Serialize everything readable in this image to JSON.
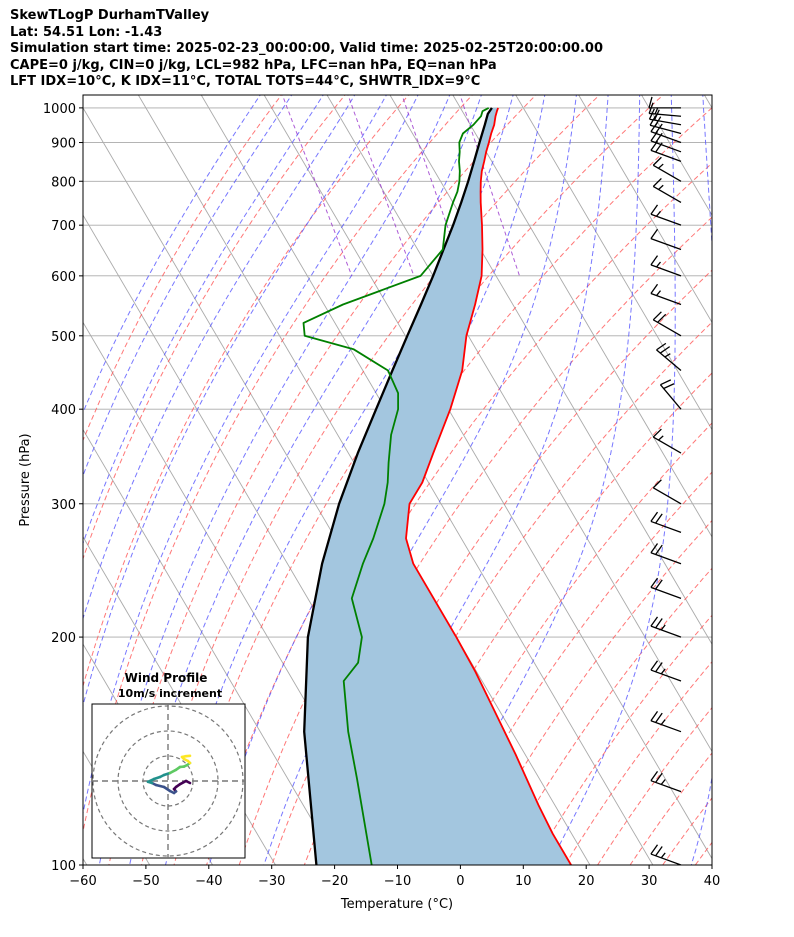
{
  "header": {
    "line1": "SkewTLogP DurhamTValley",
    "line2": "Lat: 54.51   Lon: -1.43",
    "line3": "Simulation start time: 2025-02-23_00:00:00, Valid time: 2025-02-25T20:00:00.00",
    "line4": "CAPE=0 j/kg, CIN=0 j/kg, LCL=982 hPa, LFC=nan hPa, EQ=nan hPa",
    "line5": "LFT IDX=10°C, K IDX=11°C, TOTAL TOTS=44°C, SHWTR_IDX=9°C"
  },
  "chart_data": {
    "type": "skewt",
    "xlabel": "Temperature (°C)",
    "ylabel": "Pressure (hPa)",
    "xlim": [
      -60,
      40
    ],
    "ylim": [
      1040,
      100
    ],
    "x_ticks": [
      "−60",
      "−50",
      "−40",
      "−30",
      "−20",
      "−10",
      "0",
      "10",
      "20",
      "30",
      "40"
    ],
    "y_ticks": [
      "100",
      "200",
      "300",
      "400",
      "500",
      "600",
      "700",
      "800",
      "900",
      "1000"
    ],
    "y_tick_values": [
      100,
      200,
      300,
      400,
      500,
      600,
      700,
      800,
      900,
      1000
    ],
    "skew_degrees_per_log_decade": 70.6,
    "temperature": {
      "color": "#ff0000",
      "points": [
        [
          1000,
          6
        ],
        [
          990,
          5.5
        ],
        [
          975,
          4.8
        ],
        [
          950,
          3.8
        ],
        [
          925,
          2.5
        ],
        [
          900,
          1.3
        ],
        [
          875,
          0
        ],
        [
          850,
          -1.2
        ],
        [
          825,
          -2.5
        ],
        [
          800,
          -3.6
        ],
        [
          775,
          -4.6
        ],
        [
          750,
          -5.6
        ],
        [
          700,
          -7.5
        ],
        [
          650,
          -9.7
        ],
        [
          600,
          -12.3
        ],
        [
          550,
          -16
        ],
        [
          500,
          -20.3
        ],
        [
          450,
          -24.2
        ],
        [
          400,
          -29.7
        ],
        [
          350,
          -36.5
        ],
        [
          320,
          -41
        ],
        [
          300,
          -45
        ],
        [
          270,
          -48.8
        ],
        [
          250,
          -50
        ],
        [
          200,
          -50
        ],
        [
          180,
          -50.2
        ],
        [
          160,
          -50.8
        ],
        [
          140,
          -51.5
        ],
        [
          120,
          -52.6
        ],
        [
          110,
          -53
        ],
        [
          100,
          -53
        ]
      ]
    },
    "dewpoint": {
      "color": "#008000",
      "points": [
        [
          1000,
          4.5
        ],
        [
          990,
          3.2
        ],
        [
          975,
          2.5
        ],
        [
          950,
          0.5
        ],
        [
          925,
          -2
        ],
        [
          900,
          -3.4
        ],
        [
          875,
          -4.2
        ],
        [
          850,
          -5.2
        ],
        [
          825,
          -6
        ],
        [
          800,
          -7
        ],
        [
          775,
          -8.3
        ],
        [
          750,
          -10
        ],
        [
          700,
          -13.3
        ],
        [
          650,
          -16
        ],
        [
          600,
          -22
        ],
        [
          550,
          -37
        ],
        [
          520,
          -45
        ],
        [
          500,
          -46
        ],
        [
          480,
          -39.5
        ],
        [
          450,
          -36
        ],
        [
          420,
          -36.5
        ],
        [
          400,
          -38
        ],
        [
          370,
          -41.5
        ],
        [
          340,
          -44.5
        ],
        [
          320,
          -46.5
        ],
        [
          300,
          -49
        ],
        [
          270,
          -54
        ],
        [
          250,
          -58
        ],
        [
          225,
          -63
        ],
        [
          200,
          -65
        ],
        [
          185,
          -68
        ],
        [
          175,
          -72
        ],
        [
          150,
          -76
        ],
        [
          130,
          -79
        ],
        [
          100,
          -84.7
        ]
      ]
    },
    "parcel": {
      "color": "#000000",
      "points": [
        [
          1000,
          5
        ],
        [
          982,
          3.8
        ],
        [
          950,
          2.3
        ],
        [
          900,
          -0.2
        ],
        [
          850,
          -2.8
        ],
        [
          800,
          -5.6
        ],
        [
          750,
          -8.7
        ],
        [
          700,
          -12.1
        ],
        [
          650,
          -15.9
        ],
        [
          600,
          -20
        ],
        [
          550,
          -24.6
        ],
        [
          500,
          -29.7
        ],
        [
          450,
          -35.3
        ],
        [
          400,
          -41.5
        ],
        [
          350,
          -48.5
        ],
        [
          300,
          -56.2
        ],
        [
          250,
          -64.5
        ],
        [
          200,
          -73.6
        ],
        [
          150,
          -83
        ],
        [
          100,
          -93.5
        ]
      ]
    },
    "cape_cin_shading": {
      "color": "#a3c6df",
      "label": ""
    },
    "reference_lines": {
      "isotherm_color": "#aaaaaa",
      "dry_adiabat_color": "#ff5555",
      "moist_adiabat_color": "#5555ff",
      "mixing_ratio_color": "#9933cc"
    },
    "wind_barbs": {
      "color": "#000000",
      "pressures": [
        1000,
        975,
        950,
        925,
        900,
        875,
        850,
        800,
        750,
        700,
        650,
        600,
        550,
        500,
        450,
        400,
        350,
        300,
        275,
        250,
        225,
        200,
        175,
        150,
        125,
        100
      ],
      "speed_kt": [
        10,
        15,
        20,
        20,
        20,
        20,
        20,
        15,
        15,
        15,
        10,
        15,
        15,
        20,
        25,
        20,
        15,
        10,
        20,
        20,
        20,
        25,
        25,
        25,
        25,
        25
      ],
      "direction_deg": [
        270,
        275,
        280,
        285,
        290,
        290,
        290,
        300,
        300,
        290,
        290,
        290,
        290,
        300,
        310,
        320,
        300,
        300,
        290,
        290,
        290,
        290,
        290,
        290,
        290,
        290
      ]
    },
    "hodograph": {
      "title": "Wind Profile",
      "subtitle": "10m/s increment",
      "ring_increment_ms": 10,
      "rings": 3,
      "trace_u": [
        5.5,
        4.5,
        3.0,
        2.0,
        1.5,
        2.0,
        1.5,
        0.5,
        -1.0,
        -3.0,
        -4.0,
        -5.0,
        -3.5,
        -2.0,
        -1.0,
        0.5,
        2.0,
        3.0,
        4.0,
        4.8,
        5.5,
        5.0,
        4.0,
        3.5,
        4.5,
        5.5
      ],
      "trace_v": [
        -0.5,
        0.0,
        -0.8,
        -1.5,
        -2.0,
        -2.6,
        -3.0,
        -2.5,
        -1.5,
        -1.0,
        -0.5,
        -0.2,
        0.5,
        1.0,
        1.5,
        2.0,
        2.8,
        3.5,
        3.6,
        4.0,
        4.5,
        5.0,
        5.5,
        6.0,
        6.2,
        6.3
      ]
    }
  }
}
